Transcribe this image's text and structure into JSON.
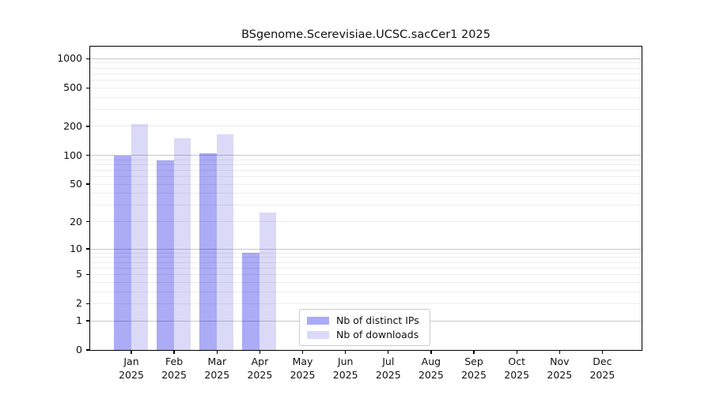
{
  "figure": {
    "title": "BSgenome.Scerevisiae.UCSC.sacCer1 2025",
    "background": "#ffffff"
  },
  "chart_data": {
    "type": "bar",
    "title": "BSgenome.Scerevisiae.UCSC.sacCer1 2025",
    "x": {
      "months": [
        "Jan",
        "Feb",
        "Mar",
        "Apr",
        "May",
        "Jun",
        "Jul",
        "Aug",
        "Sep",
        "Oct",
        "Nov",
        "Dec"
      ],
      "year": "2025"
    },
    "series": [
      {
        "name": "Nb of distinct IPs",
        "color": "#ababf6",
        "values": [
          100,
          88,
          105,
          9,
          0,
          0,
          0,
          0,
          0,
          0,
          0,
          0
        ]
      },
      {
        "name": "Nb of downloads",
        "color": "#dadaf8",
        "values": [
          210,
          152,
          166,
          25,
          0,
          0,
          0,
          0,
          0,
          0,
          0,
          0
        ]
      }
    ],
    "y_axis": {
      "scale": "log1p",
      "tick_labels": [
        0,
        1,
        2,
        5,
        10,
        20,
        50,
        100,
        200,
        500,
        1000
      ],
      "major_gridlines": [
        1,
        10,
        100,
        1000
      ],
      "minor_gridlines": [
        2,
        3,
        4,
        5,
        6,
        7,
        8,
        9,
        20,
        30,
        40,
        50,
        60,
        70,
        80,
        90,
        200,
        300,
        400,
        500,
        600,
        700,
        800,
        900
      ],
      "ylim": [
        0,
        1330
      ]
    },
    "legend": {
      "entries": [
        "Nb of distinct IPs",
        "Nb of downloads"
      ],
      "location": "lower-center-left-inside"
    },
    "grid": true
  },
  "colors": {
    "distinct_ips": "#ababf6",
    "downloads": "#dadaf8",
    "grid_major": "#c9c9c9",
    "grid_minor": "#ededed",
    "axis": "#000000"
  }
}
